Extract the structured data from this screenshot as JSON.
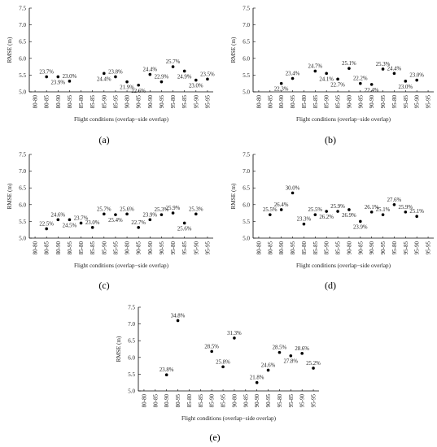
{
  "chart_data": [
    {
      "type": "scatter",
      "panel": "(a)",
      "xlabel": "Flight conditions (overlap−side overlap)",
      "ylabel": "RMSE (m)",
      "ylim": [
        5.0,
        7.5
      ],
      "yticks": [
        "5.0",
        "5.5",
        "6.0",
        "6.5",
        "7.0",
        "7.5"
      ],
      "categories": [
        "80-80",
        "80-85",
        "80-90",
        "80-95",
        "85-80",
        "85-85",
        "85-90",
        "85-95",
        "90-80",
        "90-85",
        "90-90",
        "90-95",
        "95-80",
        "95-85",
        "95-90",
        "95-95"
      ],
      "points": [
        {
          "x": "80-85",
          "y": 5.45,
          "label": "23.7%",
          "pos": "above"
        },
        {
          "x": "80-90",
          "y": 5.45,
          "label": "23.9%",
          "pos": "below"
        },
        {
          "x": "80-95",
          "y": 5.32,
          "label": "23.0%",
          "pos": "above"
        },
        {
          "x": "85-90",
          "y": 5.55,
          "label": "24.4%",
          "pos": "below"
        },
        {
          "x": "85-95",
          "y": 5.45,
          "label": "23.8%",
          "pos": "above"
        },
        {
          "x": "90-80",
          "y": 5.3,
          "label": "21.9%",
          "pos": "below"
        },
        {
          "x": "90-85",
          "y": 5.2,
          "label": "22.6%",
          "pos": "below"
        },
        {
          "x": "90-90",
          "y": 5.52,
          "label": "24.4%",
          "pos": "above"
        },
        {
          "x": "90-95",
          "y": 5.3,
          "label": "22.9%",
          "pos": "above"
        },
        {
          "x": "95-80",
          "y": 5.75,
          "label": "25.7%",
          "pos": "above"
        },
        {
          "x": "95-85",
          "y": 5.62,
          "label": "24.9%",
          "pos": "below"
        },
        {
          "x": "95-90",
          "y": 5.35,
          "label": "23.0%",
          "pos": "below"
        },
        {
          "x": "95-95",
          "y": 5.38,
          "label": "23.5%",
          "pos": "above"
        }
      ]
    },
    {
      "type": "scatter",
      "panel": "(b)",
      "xlabel": "Flight conditions (overlap−side overlap)",
      "ylabel": "RMSE (m)",
      "ylim": [
        5.0,
        7.5
      ],
      "yticks": [
        "5.0",
        "5.5",
        "6.0",
        "6.5",
        "7.0",
        "7.5"
      ],
      "categories": [
        "80-80",
        "80-85",
        "80-90",
        "80-95",
        "85-80",
        "85-85",
        "85-90",
        "85-95",
        "90-80",
        "90-85",
        "90-90",
        "90-95",
        "95-80",
        "95-85",
        "95-90",
        "95-95"
      ],
      "points": [
        {
          "x": "80-90",
          "y": 5.25,
          "label": "22.3%",
          "pos": "below"
        },
        {
          "x": "80-95",
          "y": 5.4,
          "label": "23.4%",
          "pos": "above"
        },
        {
          "x": "85-85",
          "y": 5.62,
          "label": "24.7%",
          "pos": "above"
        },
        {
          "x": "85-90",
          "y": 5.55,
          "label": "24.1%",
          "pos": "below"
        },
        {
          "x": "85-95",
          "y": 5.38,
          "label": "22.7%",
          "pos": "below"
        },
        {
          "x": "90-80",
          "y": 5.7,
          "label": "25.1%",
          "pos": "above"
        },
        {
          "x": "90-85",
          "y": 5.25,
          "label": "22.2%",
          "pos": "above"
        },
        {
          "x": "90-90",
          "y": 5.22,
          "label": "22.4%",
          "pos": "below"
        },
        {
          "x": "90-95",
          "y": 5.68,
          "label": "25.3%",
          "pos": "above"
        },
        {
          "x": "95-80",
          "y": 5.55,
          "label": "24.4%",
          "pos": "above"
        },
        {
          "x": "95-85",
          "y": 5.32,
          "label": "23.0%",
          "pos": "below"
        },
        {
          "x": "95-90",
          "y": 5.35,
          "label": "23.0%",
          "pos": "above"
        }
      ]
    },
    {
      "type": "scatter",
      "panel": "(c)",
      "xlabel": "Flight conditions (overlap−side overlap)",
      "ylabel": "RMSE (m)",
      "ylim": [
        5.0,
        7.5
      ],
      "yticks": [
        "5.0",
        "5.5",
        "6.0",
        "6.5",
        "7.0",
        "7.5"
      ],
      "categories": [
        "80-80",
        "80-85",
        "80-90",
        "80-95",
        "85-80",
        "85-85",
        "85-90",
        "85-95",
        "90-80",
        "90-85",
        "90-90",
        "90-95",
        "95-80",
        "95-85",
        "95-90",
        "95-95"
      ],
      "points": [
        {
          "x": "80-85",
          "y": 5.28,
          "label": "22.5%",
          "pos": "above"
        },
        {
          "x": "80-90",
          "y": 5.55,
          "label": "24.6%",
          "pos": "above"
        },
        {
          "x": "80-95",
          "y": 5.55,
          "label": "24.5%",
          "pos": "below"
        },
        {
          "x": "85-80",
          "y": 5.45,
          "label": "23.7%",
          "pos": "above"
        },
        {
          "x": "85-85",
          "y": 5.32,
          "label": "23.0%",
          "pos": "above"
        },
        {
          "x": "85-90",
          "y": 5.72,
          "label": "25.7%",
          "pos": "above"
        },
        {
          "x": "85-95",
          "y": 5.7,
          "label": "25.4%",
          "pos": "below"
        },
        {
          "x": "90-80",
          "y": 5.72,
          "label": "25.6%",
          "pos": "above"
        },
        {
          "x": "90-85",
          "y": 5.32,
          "label": "22.7%",
          "pos": "above"
        },
        {
          "x": "90-90",
          "y": 5.55,
          "label": "23.9%",
          "pos": "above"
        },
        {
          "x": "90-95",
          "y": 5.7,
          "label": "25.3%",
          "pos": "above"
        },
        {
          "x": "95-80",
          "y": 5.75,
          "label": "25.9%",
          "pos": "above"
        },
        {
          "x": "95-85",
          "y": 5.45,
          "label": "25.6%",
          "pos": "below"
        },
        {
          "x": "95-90",
          "y": 5.72,
          "label": "25.3%",
          "pos": "above"
        }
      ]
    },
    {
      "type": "scatter",
      "panel": "(d)",
      "xlabel": "Flight conditions (overlap−side overlap)",
      "ylabel": "RMSE (m)",
      "ylim": [
        5.0,
        7.5
      ],
      "yticks": [
        "5.0",
        "5.5",
        "6.0",
        "6.5",
        "7.0",
        "7.5"
      ],
      "categories": [
        "80-80",
        "80-85",
        "80-90",
        "80-95",
        "85-80",
        "85-85",
        "85-90",
        "85-95",
        "90-80",
        "90-85",
        "90-90",
        "90-95",
        "95-80",
        "95-85",
        "95-90",
        "95-95"
      ],
      "points": [
        {
          "x": "80-85",
          "y": 5.7,
          "label": "25.5%",
          "pos": "above"
        },
        {
          "x": "80-90",
          "y": 5.85,
          "label": "26.4%",
          "pos": "above"
        },
        {
          "x": "80-95",
          "y": 6.35,
          "label": "30.0%",
          "pos": "above"
        },
        {
          "x": "85-80",
          "y": 5.42,
          "label": "23.3%",
          "pos": "above"
        },
        {
          "x": "85-85",
          "y": 5.7,
          "label": "25.5%",
          "pos": "above"
        },
        {
          "x": "85-90",
          "y": 5.8,
          "label": "26.2%",
          "pos": "below"
        },
        {
          "x": "85-95",
          "y": 5.8,
          "label": "25.9%",
          "pos": "above"
        },
        {
          "x": "90-80",
          "y": 5.85,
          "label": "26.9%",
          "pos": "below"
        },
        {
          "x": "90-85",
          "y": 5.5,
          "label": "23.9%",
          "pos": "below"
        },
        {
          "x": "90-90",
          "y": 5.78,
          "label": "26.1%",
          "pos": "above"
        },
        {
          "x": "90-95",
          "y": 5.7,
          "label": "25.1%",
          "pos": "above"
        },
        {
          "x": "95-80",
          "y": 6.0,
          "label": "27.6%",
          "pos": "above"
        },
        {
          "x": "95-85",
          "y": 5.78,
          "label": "25.9%",
          "pos": "above"
        },
        {
          "x": "95-90",
          "y": 5.65,
          "label": "25.1%",
          "pos": "above"
        }
      ]
    },
    {
      "type": "scatter",
      "panel": "(e)",
      "xlabel": "Flight conditions (overlap−side overlap)",
      "ylabel": "RMSE (m)",
      "ylim": [
        5.0,
        7.5
      ],
      "yticks": [
        "5.0",
        "5.5",
        "6.0",
        "6.5",
        "7.0",
        "7.5"
      ],
      "categories": [
        "80-80",
        "80-85",
        "80-90",
        "80-95",
        "85-80",
        "85-85",
        "85-90",
        "85-95",
        "90-80",
        "90-85",
        "90-90",
        "90-95",
        "95-80",
        "95-85",
        "95-90",
        "95-95"
      ],
      "points": [
        {
          "x": "80-90",
          "y": 5.48,
          "label": "23.8%",
          "pos": "above"
        },
        {
          "x": "80-95",
          "y": 7.1,
          "label": "34.8%",
          "pos": "above"
        },
        {
          "x": "85-90",
          "y": 6.18,
          "label": "28.5%",
          "pos": "above"
        },
        {
          "x": "85-95",
          "y": 5.72,
          "label": "25.8%",
          "pos": "above"
        },
        {
          "x": "90-80",
          "y": 6.58,
          "label": "31.3%",
          "pos": "above"
        },
        {
          "x": "90-90",
          "y": 5.25,
          "label": "21.8%",
          "pos": "above"
        },
        {
          "x": "90-95",
          "y": 5.62,
          "label": "24.6%",
          "pos": "above"
        },
        {
          "x": "95-80",
          "y": 6.15,
          "label": "28.5%",
          "pos": "above"
        },
        {
          "x": "95-85",
          "y": 6.05,
          "label": "27.8%",
          "pos": "below"
        },
        {
          "x": "95-90",
          "y": 6.12,
          "label": "28.6%",
          "pos": "above"
        },
        {
          "x": "95-95",
          "y": 5.68,
          "label": "25.2%",
          "pos": "above"
        }
      ]
    }
  ]
}
